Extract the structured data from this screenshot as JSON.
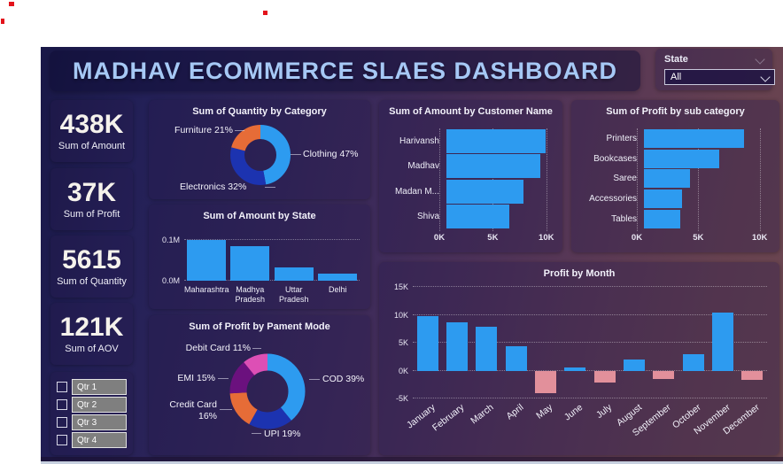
{
  "header": {
    "title": "MADHAV ECOMMERCE SLAES DASHBOARD"
  },
  "state_filter": {
    "label": "State",
    "value": "All"
  },
  "kpis": [
    {
      "value": "438K",
      "label": "Sum of Amount"
    },
    {
      "value": "37K",
      "label": "Sum of Profit"
    },
    {
      "value": "5615",
      "label": "Sum of Quantity"
    },
    {
      "value": "121K",
      "label": "Sum of AOV"
    }
  ],
  "quarter_slicer": {
    "items": [
      "Qtr 1",
      "Qtr 2",
      "Qtr 3",
      "Qtr 4"
    ]
  },
  "colors": {
    "accent_blue": "#2D9BF0",
    "dark_blue": "#1C33B0",
    "orange": "#E66C37",
    "purple": "#6B117E",
    "pink": "#DD4FB5",
    "negative_pink": "#E2909B",
    "title_blue": "#A6C8F5"
  },
  "chart_data": [
    {
      "type": "pie",
      "variant": "donut",
      "title": "Sum of Quantity by Category",
      "labels": [
        "Clothing",
        "Electronics",
        "Furniture"
      ],
      "values_pct": [
        47,
        32,
        21
      ],
      "colors": [
        "#2D9BF0",
        "#1C33B0",
        "#E66C37"
      ],
      "label_texts": [
        "Clothing 47%",
        "Electronics 32%",
        "Furniture 21%"
      ]
    },
    {
      "type": "bar",
      "title": "Sum of Amount by State",
      "categories": [
        "Maharashtra",
        "Madhya Pradesh",
        "Uttar Pradesh",
        "Delhi"
      ],
      "values": [
        0.1,
        0.083,
        0.032,
        0.018
      ],
      "unit": "M",
      "yticks": [
        {
          "label": "0.1M",
          "value": 0.1
        },
        {
          "label": "0.0M",
          "value": 0
        }
      ],
      "ylim": [
        0,
        0.112
      ],
      "bar_color": "#2D9BF0"
    },
    {
      "type": "pie",
      "variant": "donut",
      "title": "Sum of Profit by Pament Mode",
      "labels": [
        "COD",
        "UPI",
        "Credit Card",
        "EMI",
        "Debit Card"
      ],
      "values_pct": [
        39,
        19,
        16,
        15,
        11
      ],
      "colors": [
        "#2D9BF0",
        "#1C33B0",
        "#E66C37",
        "#6B117E",
        "#DD4FB5"
      ],
      "label_texts": [
        "COD 39%",
        "UPI 19%",
        "Credit Card 16%",
        "EMI 15%",
        "Debit Card 11%"
      ]
    },
    {
      "type": "bar",
      "orientation": "horizontal",
      "title": "Sum of Amount by Customer Name",
      "categories": [
        "Harivansh",
        "Madhav",
        "Madan M...",
        "Shiva"
      ],
      "values": [
        9.9,
        9.4,
        7.7,
        6.3
      ],
      "unit": "K",
      "xticks": [
        {
          "label": "0K",
          "value": 0
        },
        {
          "label": "5K",
          "value": 5
        },
        {
          "label": "10K",
          "value": 10
        }
      ],
      "xlim": [
        0,
        10.35
      ],
      "bar_color": "#2D9BF0"
    },
    {
      "type": "bar",
      "orientation": "horizontal",
      "title": "Sum of Profit by sub category",
      "categories": [
        "Printers",
        "Bookcases",
        "Saree",
        "Accessories",
        "Tables"
      ],
      "values": [
        8.6,
        6.5,
        4.0,
        3.3,
        3.1
      ],
      "unit": "K",
      "xticks": [
        {
          "label": "0K",
          "value": 0
        },
        {
          "label": "5K",
          "value": 5
        },
        {
          "label": "10K",
          "value": 10
        }
      ],
      "xlim": [
        0,
        10.6
      ],
      "bar_color": "#2D9BF0"
    },
    {
      "type": "bar",
      "title": "Profit by Month",
      "categories": [
        "January",
        "February",
        "March",
        "April",
        "May",
        "June",
        "July",
        "August",
        "September",
        "October",
        "November",
        "December"
      ],
      "values": [
        9.7,
        8.6,
        7.9,
        4.3,
        -4.0,
        0.5,
        -2.2,
        2.0,
        -1.5,
        3.0,
        10.4,
        -1.7
      ],
      "unit": "K",
      "yticks": [
        {
          "label": "15K",
          "value": 15
        },
        {
          "label": "10K",
          "value": 10
        },
        {
          "label": "5K",
          "value": 5
        },
        {
          "label": "0K",
          "value": 0
        },
        {
          "label": "-5K",
          "value": -5
        }
      ],
      "ylim": [
        -5,
        15
      ],
      "positive_color": "#2D9BF0",
      "negative_color": "#E2909B"
    }
  ]
}
